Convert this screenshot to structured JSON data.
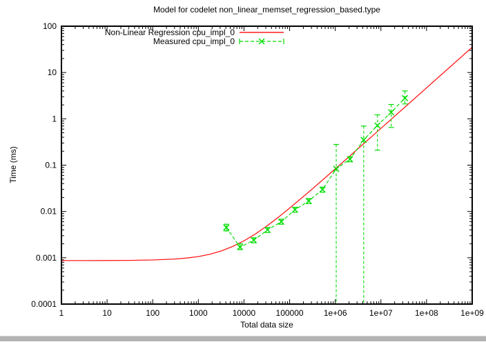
{
  "chrome": {
    "bottom_bar_color": "#b3b3b3"
  },
  "chart_data": {
    "type": "line",
    "title": "Model for codelet non_linear_memset_regression_based.type",
    "xlabel": "Total data size",
    "ylabel": "Time (ms)",
    "x_scale": "log",
    "y_scale": "log",
    "xlim": [
      1,
      1000000000
    ],
    "ylim": [
      0.0001,
      100
    ],
    "x_ticks": [
      "1",
      "10",
      "100",
      "1000",
      "10000",
      "100000",
      "1e+06",
      "1e+07",
      "1e+08",
      "1e+09"
    ],
    "y_ticks": [
      "0.0001",
      "0.001",
      "0.01",
      "0.1",
      "1",
      "10",
      "100"
    ],
    "grid": false,
    "legend_position": "top-center-inside",
    "series": [
      {
        "name": "Non-Linear Regression cpu_impl_0",
        "color": "#ff1a1a",
        "style": "solid",
        "model": "y = a + b*x^c",
        "model_params": {
          "a": 0.00087,
          "b": 4.5e-07,
          "c": 0.877
        },
        "x": [
          1,
          3.16,
          10,
          31.6,
          100,
          316,
          562,
          1000,
          1778,
          3162,
          5623,
          10000,
          17783,
          31623,
          56234,
          100000,
          316228,
          1000000,
          3162278,
          10000000,
          31622777,
          100000000,
          316227766,
          1000000000
        ],
        "y": [
          0.00087,
          0.000871,
          0.000873,
          0.000879,
          0.000896,
          0.00094,
          0.000986,
          0.00106,
          0.00119,
          0.0014,
          0.00175,
          0.00232,
          0.00327,
          0.00485,
          0.00746,
          0.0118,
          0.0308,
          0.0831,
          0.227,
          0.621,
          1.7,
          4.67,
          12.8,
          35.2
        ]
      },
      {
        "name": "Measured cpu_impl_0",
        "color": "#00dd00",
        "style": "dashed line, x markers, y error bars",
        "points_xylohi": [
          [
            4096,
            0.0045,
            0.0038,
            0.0053
          ],
          [
            8192,
            0.0017,
            0.0015,
            0.002
          ],
          [
            16384,
            0.0024,
            0.0021,
            0.0027
          ],
          [
            32768,
            0.004,
            0.0035,
            0.0045
          ],
          [
            65536,
            0.006,
            0.0053,
            0.0068
          ],
          [
            131072,
            0.0109,
            0.0096,
            0.0123
          ],
          [
            262144,
            0.0168,
            0.0148,
            0.019
          ],
          [
            524288,
            0.0297,
            0.026,
            0.0335
          ],
          [
            1048576,
            0.083,
            0.0001,
            0.28
          ],
          [
            2097152,
            0.134,
            0.118,
            0.152
          ],
          [
            4194304,
            0.35,
            0.0001,
            0.7
          ],
          [
            8388608,
            0.72,
            0.21,
            1.22
          ],
          [
            16777216,
            1.38,
            0.65,
            2.04
          ],
          [
            33554432,
            2.8,
            2.1,
            4.0
          ]
        ]
      }
    ]
  }
}
